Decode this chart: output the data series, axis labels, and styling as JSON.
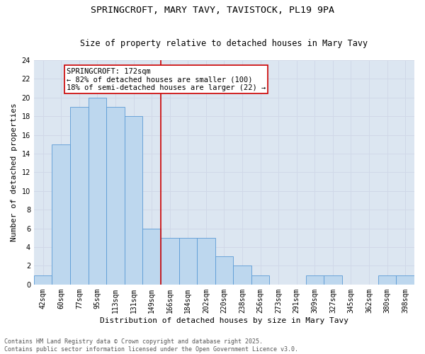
{
  "title1": "SPRINGCROFT, MARY TAVY, TAVISTOCK, PL19 9PA",
  "title2": "Size of property relative to detached houses in Mary Tavy",
  "xlabel": "Distribution of detached houses by size in Mary Tavy",
  "ylabel": "Number of detached properties",
  "categories": [
    "42sqm",
    "60sqm",
    "77sqm",
    "95sqm",
    "113sqm",
    "131sqm",
    "149sqm",
    "166sqm",
    "184sqm",
    "202sqm",
    "220sqm",
    "238sqm",
    "256sqm",
    "273sqm",
    "291sqm",
    "309sqm",
    "327sqm",
    "345sqm",
    "362sqm",
    "380sqm",
    "398sqm"
  ],
  "values": [
    1,
    15,
    19,
    20,
    19,
    18,
    6,
    5,
    5,
    5,
    3,
    2,
    1,
    0,
    0,
    1,
    1,
    0,
    0,
    1,
    1
  ],
  "bar_color": "#bdd7ee",
  "bar_edge_color": "#5b9bd5",
  "red_line_index": 7,
  "annotation_line1": "SPRINGCROFT: 172sqm",
  "annotation_line2": "← 82% of detached houses are smaller (100)",
  "annotation_line3": "18% of semi-detached houses are larger (22) →",
  "annotation_box_color": "#ffffff",
  "annotation_box_edge": "#cc0000",
  "red_line_color": "#cc0000",
  "ylim": [
    0,
    24
  ],
  "yticks": [
    0,
    2,
    4,
    6,
    8,
    10,
    12,
    14,
    16,
    18,
    20,
    22,
    24
  ],
  "grid_color": "#d0d8e8",
  "background_color": "#dce6f1",
  "footer": "Contains HM Land Registry data © Crown copyright and database right 2025.\nContains public sector information licensed under the Open Government Licence v3.0.",
  "title1_fontsize": 9.5,
  "title2_fontsize": 8.5,
  "xlabel_fontsize": 8,
  "ylabel_fontsize": 8,
  "tick_fontsize": 7,
  "annotation_fontsize": 7.5,
  "footer_fontsize": 6
}
